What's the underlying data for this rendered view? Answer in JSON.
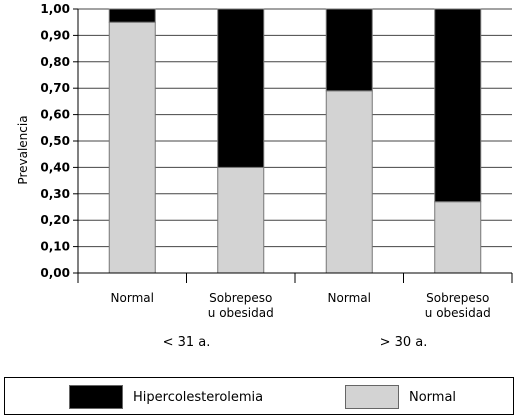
{
  "chart_data": {
    "type": "bar",
    "stacked": true,
    "ylabel": "Prevalencia",
    "ylim": [
      0,
      1
    ],
    "yticks": [
      "0,00",
      "0,10",
      "0,20",
      "0,30",
      "0,40",
      "0,50",
      "0,60",
      "0,70",
      "0,80",
      "0,90",
      "1,00"
    ],
    "grid": true,
    "categories": [
      {
        "label_lines": [
          "Normal"
        ]
      },
      {
        "label_lines": [
          "Sobrepeso",
          "u obesidad"
        ]
      },
      {
        "label_lines": [
          "Normal"
        ]
      },
      {
        "label_lines": [
          "Sobrepeso",
          "u obesidad"
        ]
      }
    ],
    "groups": [
      "< 31 a.",
      "> 30 a."
    ],
    "series": [
      {
        "name": "Normal",
        "color": "#d3d3d3",
        "values": [
          0.95,
          0.4,
          0.69,
          0.27
        ]
      },
      {
        "name": "Hipercolesterolemia",
        "color": "#000000",
        "values": [
          0.05,
          0.6,
          0.31,
          0.73
        ]
      }
    ],
    "legend_position": "bottom"
  },
  "legend": {
    "items": [
      {
        "label": "Hipercolesterolemia",
        "color": "#000000"
      },
      {
        "label": "Normal",
        "color": "#d3d3d3"
      }
    ]
  }
}
